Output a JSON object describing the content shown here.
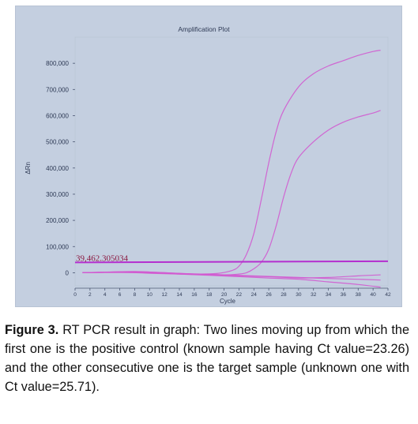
{
  "chart_data": {
    "type": "line",
    "title": "Amplification Plot",
    "xlabel": "Cycle",
    "ylabel": "ΔRn",
    "xlim": [
      0,
      42
    ],
    "ylim": [
      -50000,
      900000
    ],
    "x_ticks": [
      "0",
      "2",
      "4",
      "6",
      "8",
      "10",
      "12",
      "14",
      "16",
      "18",
      "20",
      "22",
      "24",
      "26",
      "28",
      "30",
      "32",
      "34",
      "36",
      "38",
      "40",
      "42"
    ],
    "y_ticks": [
      {
        "value": 0,
        "label": "0"
      },
      {
        "value": 100000,
        "label": "100,000"
      },
      {
        "value": 200000,
        "label": "200,000"
      },
      {
        "value": 300000,
        "label": "300,000"
      },
      {
        "value": 400000,
        "label": "400,000"
      },
      {
        "value": 500000,
        "label": "500,000"
      },
      {
        "value": 600000,
        "label": "600,000"
      },
      {
        "value": 700000,
        "label": "700,000"
      },
      {
        "value": 800000,
        "label": "800,000"
      }
    ],
    "threshold": {
      "value": 39462.305034,
      "label": "39,462.305034"
    },
    "colors": {
      "curves": "#d15ad0",
      "threshold": "#b42fcf",
      "threshold_text": "#8a1840",
      "text": "#2e3a55"
    },
    "series": [
      {
        "x": [
          1,
          4,
          8,
          12,
          16,
          19,
          21,
          22,
          23,
          24,
          25,
          26,
          27,
          28,
          30,
          32,
          34,
          36,
          38,
          40,
          41
        ],
        "values": [
          0,
          2000,
          5000,
          0,
          -5000,
          -3000,
          8000,
          25000,
          70000,
          150000,
          280000,
          420000,
          540000,
          620000,
          710000,
          760000,
          790000,
          810000,
          830000,
          845000,
          850000
        ]
      },
      {
        "x": [
          1,
          4,
          8,
          12,
          16,
          20,
          22,
          23,
          24,
          25,
          26,
          27,
          28,
          29,
          30,
          32,
          34,
          36,
          38,
          40,
          41
        ],
        "values": [
          0,
          2000,
          4000,
          0,
          -5000,
          -8000,
          -5000,
          0,
          15000,
          40000,
          90000,
          180000,
          290000,
          380000,
          440000,
          500000,
          545000,
          575000,
          595000,
          610000,
          620000
        ]
      },
      {
        "x": [
          1,
          6,
          10,
          14,
          18,
          22,
          26,
          30,
          34,
          38,
          41
        ],
        "values": [
          0,
          3000,
          0,
          -5000,
          -10000,
          -15000,
          -20000,
          -25000,
          -35000,
          -45000,
          -55000
        ]
      },
      {
        "x": [
          1,
          6,
          10,
          14,
          18,
          22,
          26,
          30,
          34,
          38,
          41
        ],
        "values": [
          0,
          2000,
          -2000,
          -5000,
          -8000,
          -12000,
          -15000,
          -20000,
          -18000,
          -12000,
          -8000
        ]
      },
      {
        "x": [
          1,
          6,
          10,
          14,
          18,
          22,
          26,
          30,
          34,
          38,
          41
        ],
        "values": [
          0,
          1000,
          0,
          -3000,
          -6000,
          -10000,
          -14000,
          -18000,
          -22000,
          -25000,
          -28000
        ]
      }
    ]
  },
  "caption": {
    "label": "Figure 3.",
    "text": " RT PCR result in graph: Two lines moving up from which the first one is the positive control (known sample having Ct value=23.26) and the other consecutive one is the target sample (unknown one with Ct value=25.71)."
  }
}
